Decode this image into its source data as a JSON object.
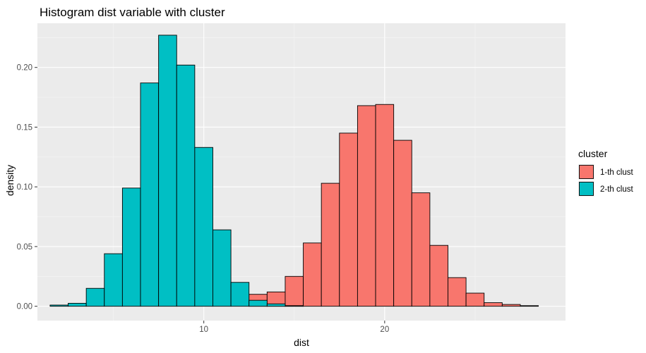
{
  "chart_data": {
    "type": "bar",
    "subtype": "histogram",
    "title": "Histogram dist variable with cluster",
    "xlabel": "dist",
    "ylabel": "density",
    "xlim": [
      0.8,
      30.0
    ],
    "ylim": [
      -0.012,
      0.237
    ],
    "x_ticks": [
      10,
      20
    ],
    "x_tick_labels": [
      "10",
      "20"
    ],
    "y_ticks": [
      0.0,
      0.05,
      0.1,
      0.15,
      0.2
    ],
    "y_tick_labels": [
      "0.00",
      "0.05",
      "0.10",
      "0.15",
      "0.20"
    ],
    "grid": true,
    "legend": {
      "title": "cluster",
      "position": "right"
    },
    "bin_width": 1,
    "series": [
      {
        "name": "1-th clust",
        "color": "#F8766D",
        "bin_centers": [
          13,
          14,
          15,
          16,
          17,
          18,
          19,
          20,
          21,
          22,
          23,
          24,
          25,
          26,
          27,
          28
        ],
        "values": [
          0.01,
          0.012,
          0.025,
          0.053,
          0.103,
          0.145,
          0.168,
          0.169,
          0.139,
          0.095,
          0.051,
          0.024,
          0.011,
          0.003,
          0.0015,
          0.0005
        ]
      },
      {
        "name": "2-th clust",
        "color": "#00BFC4",
        "bin_centers": [
          2,
          3,
          4,
          5,
          6,
          7,
          8,
          9,
          10,
          11,
          12,
          13,
          14,
          15
        ],
        "values": [
          0.001,
          0.0025,
          0.015,
          0.044,
          0.099,
          0.187,
          0.227,
          0.202,
          0.133,
          0.064,
          0.02,
          0.005,
          0.002,
          0.0005
        ]
      }
    ]
  }
}
